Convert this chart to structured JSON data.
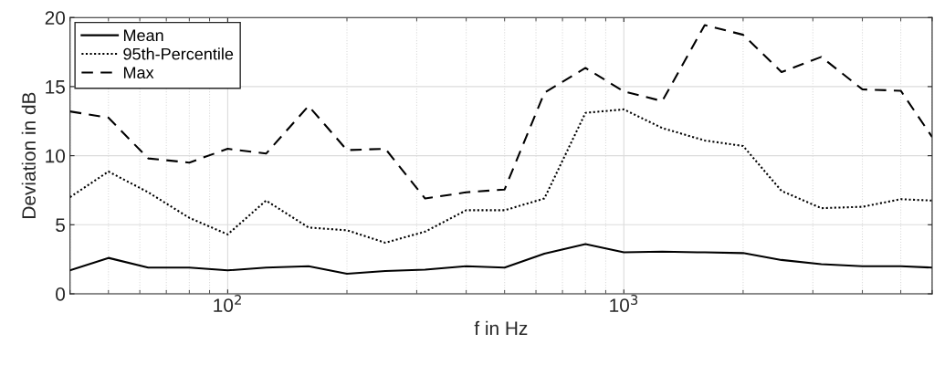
{
  "chart_data": {
    "type": "line",
    "xlabel": "f in Hz",
    "ylabel": "Deviation in dB",
    "log": "x",
    "x": [
      40,
      50,
      63,
      80,
      100,
      125,
      160,
      200,
      250,
      315,
      400,
      500,
      630,
      800,
      1000,
      1250,
      1600,
      2000,
      2500,
      3150,
      4000,
      5000,
      6000
    ],
    "series": [
      {
        "name": "Mean",
        "color": "#000000",
        "line_style": "solid",
        "values": [
          1.7,
          2.6,
          1.9,
          1.9,
          1.7,
          1.9,
          2.0,
          1.45,
          1.65,
          1.75,
          2.0,
          1.9,
          2.9,
          3.6,
          3.0,
          3.05,
          3.0,
          2.95,
          2.45,
          2.15,
          2.0,
          2.0,
          1.9
        ]
      },
      {
        "name": "95th-Percentile",
        "color": "#000000",
        "line_style": "dotted",
        "values": [
          7.0,
          8.85,
          7.35,
          5.5,
          4.3,
          6.75,
          4.8,
          4.6,
          3.7,
          4.5,
          6.05,
          6.05,
          6.9,
          13.1,
          13.35,
          12.0,
          11.1,
          10.7,
          7.45,
          6.2,
          6.3,
          6.85,
          6.75
        ]
      },
      {
        "name": "Max",
        "color": "#000000",
        "line_style": "dashed",
        "values": [
          13.2,
          12.75,
          9.8,
          9.5,
          10.5,
          10.15,
          13.6,
          10.4,
          10.5,
          6.9,
          7.35,
          7.55,
          14.55,
          16.35,
          14.65,
          13.95,
          19.45,
          18.75,
          16.05,
          17.15,
          14.8,
          14.7,
          11.35
        ]
      }
    ],
    "xlim": [
      40,
      6000
    ],
    "ylim": [
      0,
      20
    ],
    "xticks": [
      {
        "value": 100,
        "label": "10$^{2}$"
      },
      {
        "value": 1000,
        "label": "10$^{3}$"
      }
    ],
    "yticks": [
      0,
      5,
      10,
      15,
      20
    ],
    "grid": true,
    "legend": "top left"
  }
}
